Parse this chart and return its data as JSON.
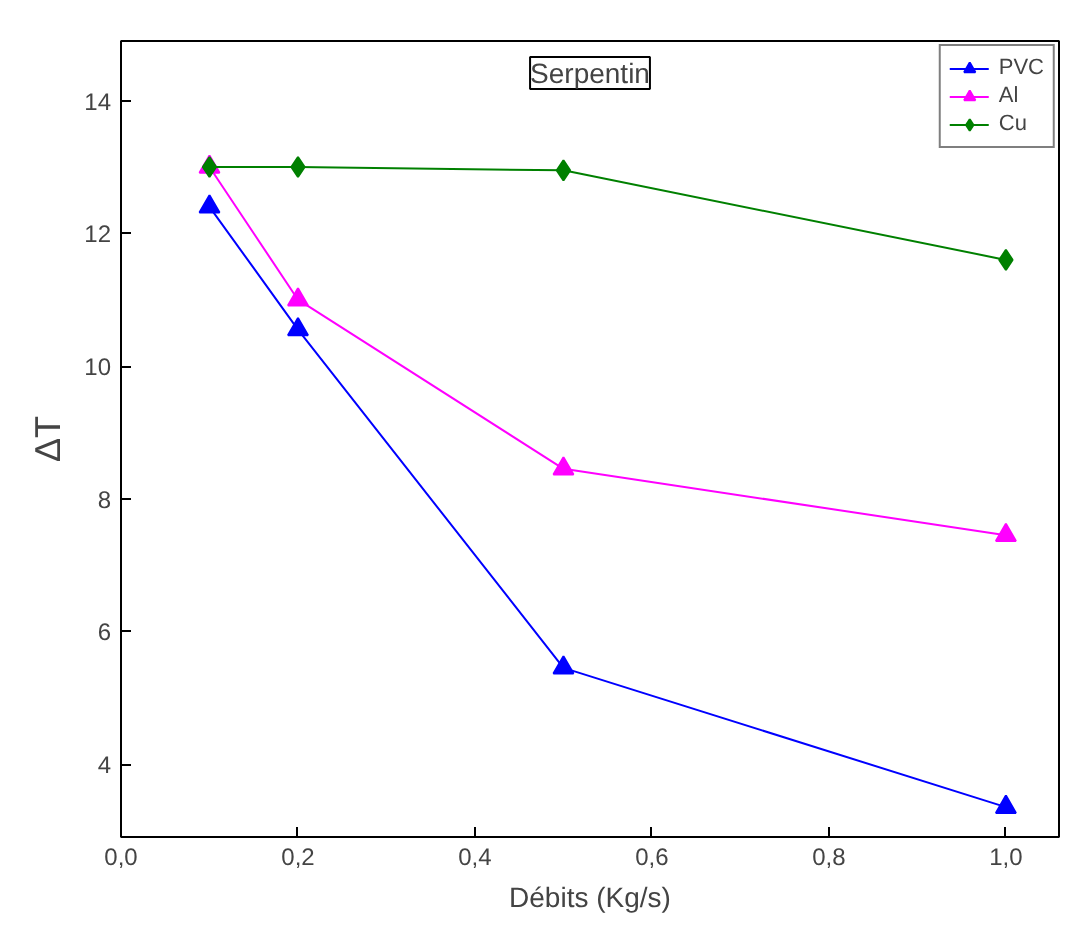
{
  "chart_data": {
    "type": "line",
    "title": "Serpentin",
    "xlabel": "Débits (Kg/s)",
    "ylabel": "ΔT",
    "x": [
      0.1,
      0.2,
      0.5,
      1.0
    ],
    "xlim": [
      0.0,
      1.06
    ],
    "ylim": [
      2.9,
      14.9
    ],
    "xticks": [
      {
        "value": 0.0,
        "label": "0,0"
      },
      {
        "value": 0.2,
        "label": "0,2"
      },
      {
        "value": 0.4,
        "label": "0,4"
      },
      {
        "value": 0.6,
        "label": "0,6"
      },
      {
        "value": 0.8,
        "label": "0,8"
      },
      {
        "value": 1.0,
        "label": "1,0"
      }
    ],
    "yticks": [
      4,
      6,
      8,
      10,
      12,
      14
    ],
    "grid": false,
    "legend": "top right",
    "line_style": "solid",
    "series": [
      {
        "name": "PVC",
        "color": "#0000ff",
        "marker": "triangle",
        "values": [
          12.4,
          10.55,
          5.45,
          3.35
        ]
      },
      {
        "name": "Al",
        "color": "#ff00ff",
        "marker": "triangle",
        "values": [
          13.0,
          11.0,
          8.45,
          7.45
        ]
      },
      {
        "name": "Cu",
        "color": "#008000",
        "marker": "diamond",
        "values": [
          13.0,
          13.0,
          12.95,
          11.6
        ]
      }
    ]
  }
}
